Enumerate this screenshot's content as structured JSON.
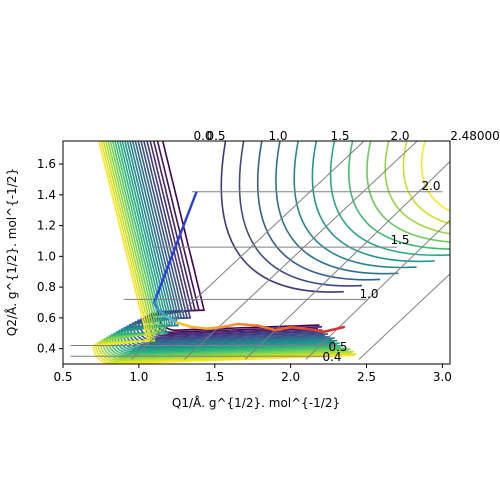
{
  "chart_data": {
    "type": "contour",
    "xlabel": "Q1/Å. g^{1/2}. mol^{-1/2}",
    "ylabel": "Q2/Å. g^{1/2}. mol^{-1/2}",
    "xlim": [
      0.5,
      3.05
    ],
    "ylim": [
      0.3,
      1.75
    ],
    "xticks": [
      "0.5",
      "1.0",
      "1.5",
      "2.0",
      "2.5",
      "3.0"
    ],
    "yticks": [
      "0.4",
      "0.6",
      "0.8",
      "1.0",
      "1.2",
      "1.4",
      "1.6"
    ],
    "skew_grid": {
      "top_labels": [
        "0.0",
        "0.5",
        "1.0",
        "1.5",
        "2.0",
        "2.48000"
      ],
      "right_labels": [
        "0.4",
        "0.5",
        "1.0",
        "1.5",
        "2.0"
      ]
    },
    "colormap": [
      "#440154",
      "#482878",
      "#3e4989",
      "#31688e",
      "#26828e",
      "#1f9e89",
      "#35b779",
      "#6ece58",
      "#b5de2b",
      "#fde725"
    ],
    "series": [
      {
        "values": [
          [
            1.12,
            0.75
          ],
          [
            1.1,
            0.7
          ],
          [
            1.12,
            0.66
          ],
          [
            1.18,
            0.61
          ],
          [
            1.25,
            0.57
          ],
          [
            1.35,
            0.54
          ],
          [
            1.45,
            0.53
          ],
          [
            1.55,
            0.54
          ],
          [
            1.65,
            0.56
          ],
          [
            1.78,
            0.55
          ],
          [
            1.9,
            0.52
          ],
          [
            2.0,
            0.54
          ],
          [
            2.1,
            0.53
          ],
          [
            2.22,
            0.51
          ],
          [
            2.35,
            0.54
          ]
        ]
      }
    ]
  }
}
